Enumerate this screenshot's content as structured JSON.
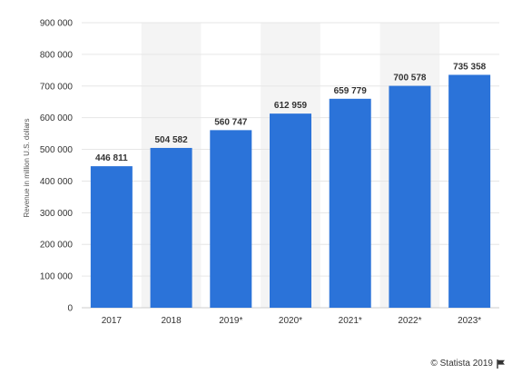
{
  "chart_data": {
    "type": "bar",
    "categories": [
      "2017",
      "2018",
      "2019*",
      "2020*",
      "2021*",
      "2022*",
      "2023*"
    ],
    "values": [
      446811,
      504582,
      560747,
      612959,
      659779,
      700578,
      735358
    ],
    "value_labels": [
      "446 811",
      "504 582",
      "560 747",
      "612 959",
      "659 779",
      "700 578",
      "735 358"
    ],
    "title": "",
    "xlabel": "",
    "ylabel": "Revenue in million U.S. dollars",
    "ylim": [
      0,
      900000
    ],
    "yticks": [
      0,
      100000,
      200000,
      300000,
      400000,
      500000,
      600000,
      700000,
      800000,
      900000
    ],
    "ytick_labels": [
      "0",
      "100 000",
      "200 000",
      "300 000",
      "400 000",
      "500 000",
      "600 000",
      "700 000",
      "800 000",
      "900 000"
    ],
    "grid": true,
    "bar_color": "#2b73d9",
    "alt_band_color": "#f4f4f4",
    "grid_color": "#e6e6e6"
  },
  "credit": {
    "text": "© Statista 2019",
    "icon": "flag-icon"
  }
}
